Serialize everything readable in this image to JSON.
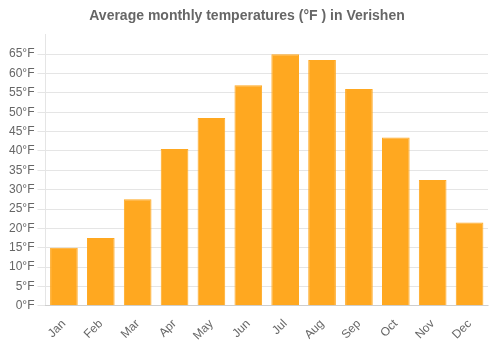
{
  "chart_data": {
    "type": "bar",
    "title": "Average monthly temperatures (°F ) in Verishen",
    "categories": [
      "Jan",
      "Feb",
      "Mar",
      "Apr",
      "May",
      "Jun",
      "Jul",
      "Aug",
      "Sep",
      "Oct",
      "Nov",
      "Dec"
    ],
    "values": [
      15,
      17.5,
      27.5,
      40.5,
      48.5,
      57,
      65,
      63.5,
      56,
      43.5,
      32.5,
      21.5
    ],
    "color": "#FFA820",
    "ylim": [
      0,
      70
    ],
    "yticks": [
      {
        "value": 0,
        "label": "0°F"
      },
      {
        "value": 5,
        "label": "5°F"
      },
      {
        "value": 10,
        "label": "10°F"
      },
      {
        "value": 15,
        "label": "15°F"
      },
      {
        "value": 20,
        "label": "20°F"
      },
      {
        "value": 25,
        "label": "25°F"
      },
      {
        "value": 30,
        "label": "30°F"
      },
      {
        "value": 35,
        "label": "35°F"
      },
      {
        "value": 40,
        "label": "40°F"
      },
      {
        "value": 45,
        "label": "45°F"
      },
      {
        "value": 50,
        "label": "50°F"
      },
      {
        "value": 55,
        "label": "55°F"
      },
      {
        "value": 60,
        "label": "60°F"
      },
      {
        "value": 65,
        "label": "65°F"
      }
    ],
    "grid": true
  }
}
